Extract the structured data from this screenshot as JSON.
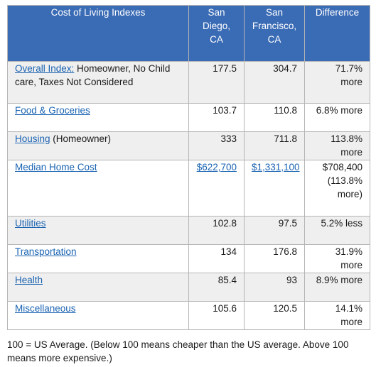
{
  "table": {
    "headers": [
      "Cost of Living Indexes",
      "San Diego, CA",
      "San Francisco, CA",
      "Difference"
    ],
    "rows": [
      {
        "label_link": "Overall Index:",
        "label_text": " Homeowner, No Child care, Taxes Not Considered",
        "sd": "177.5",
        "sf": "304.7",
        "diff": "71.7% more"
      },
      {
        "label_link": "Food & Groceries",
        "label_text": "",
        "sd": "103.7",
        "sf": "110.8",
        "diff": "6.8% more"
      },
      {
        "label_link": "Housing",
        "label_text": " (Homeowner)",
        "sd": "333",
        "sf": "711.8",
        "diff": "113.8% more"
      },
      {
        "label_link": "Median Home Cost",
        "label_text": "",
        "sd": "$622,700",
        "sf": "$1,331,100",
        "diff": "$708,400 (113.8% more)"
      },
      {
        "label_link": "Utilities",
        "label_text": "",
        "sd": "102.8",
        "sf": "97.5",
        "diff": "5.2% less"
      },
      {
        "label_link": "Transportation",
        "label_text": "",
        "sd": "134",
        "sf": "176.8",
        "diff": "31.9% more"
      },
      {
        "label_link": "Health",
        "label_text": "",
        "sd": "85.4",
        "sf": "93",
        "diff": "8.9% more"
      },
      {
        "label_link": "Miscellaneous",
        "label_text": "",
        "sd": "105.6",
        "sf": "120.5",
        "diff": "14.1% more"
      }
    ]
  },
  "footnote": "100 = US Average. (Below 100 means cheaper than the US average. Above 100 means more expensive.)",
  "colors": {
    "header_bg": "#3a6bb5",
    "link": "#1a63b2",
    "row_shade": "#efefef"
  }
}
